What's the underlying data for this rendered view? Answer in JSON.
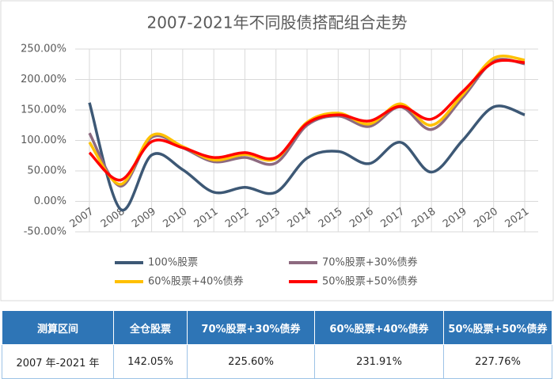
{
  "chart_data": {
    "type": "line",
    "title": "2007-2021年不同股债搭配组合走势",
    "categories": [
      "2007",
      "2008",
      "2009",
      "2010",
      "2011",
      "2012",
      "2013",
      "2014",
      "2015",
      "2016",
      "2017",
      "2018",
      "2019",
      "2020",
      "2021"
    ],
    "series": [
      {
        "name": "100%股票",
        "color": "#3d5875",
        "values": [
          162,
          -13,
          76,
          52,
          15,
          23,
          15,
          71,
          82,
          62,
          97,
          48,
          100,
          155,
          142.05
        ]
      },
      {
        "name": "70%股票+30%债券",
        "color": "#8d6a80",
        "values": [
          112,
          25,
          105,
          88,
          65,
          72,
          63,
          125,
          140,
          123,
          155,
          118,
          170,
          230,
          225.6
        ]
      },
      {
        "name": "60%股票+40%债券",
        "color": "#ffc000",
        "values": [
          97,
          28,
          108,
          90,
          68,
          77,
          70,
          130,
          145,
          127,
          160,
          125,
          175,
          235,
          231.91
        ]
      },
      {
        "name": "50%股票+50%债券",
        "color": "#ff0000",
        "values": [
          80,
          35,
          98,
          88,
          72,
          80,
          72,
          128,
          142,
          132,
          156,
          135,
          180,
          228,
          227.76
        ]
      }
    ],
    "ylim": [
      -50,
      250
    ],
    "yticks": [
      {
        "value": -50,
        "label": "-50.00%"
      },
      {
        "value": 0,
        "label": "0.00%"
      },
      {
        "value": 50,
        "label": "50.00%"
      },
      {
        "value": 100,
        "label": "100.00%"
      },
      {
        "value": 150,
        "label": "150.00%"
      },
      {
        "value": 200,
        "label": "200.00%"
      },
      {
        "value": 250,
        "label": "250.00%"
      }
    ],
    "grid": true
  },
  "table": {
    "headers": [
      "测算区间",
      "全仓股票",
      "70%股票+30%债券",
      "60%股票+40%债券",
      "50%股票+50%债券"
    ],
    "rows": [
      [
        "2007 年-2021 年",
        "142.05%",
        "225.60%",
        "231.91%",
        "227.76%"
      ]
    ]
  }
}
